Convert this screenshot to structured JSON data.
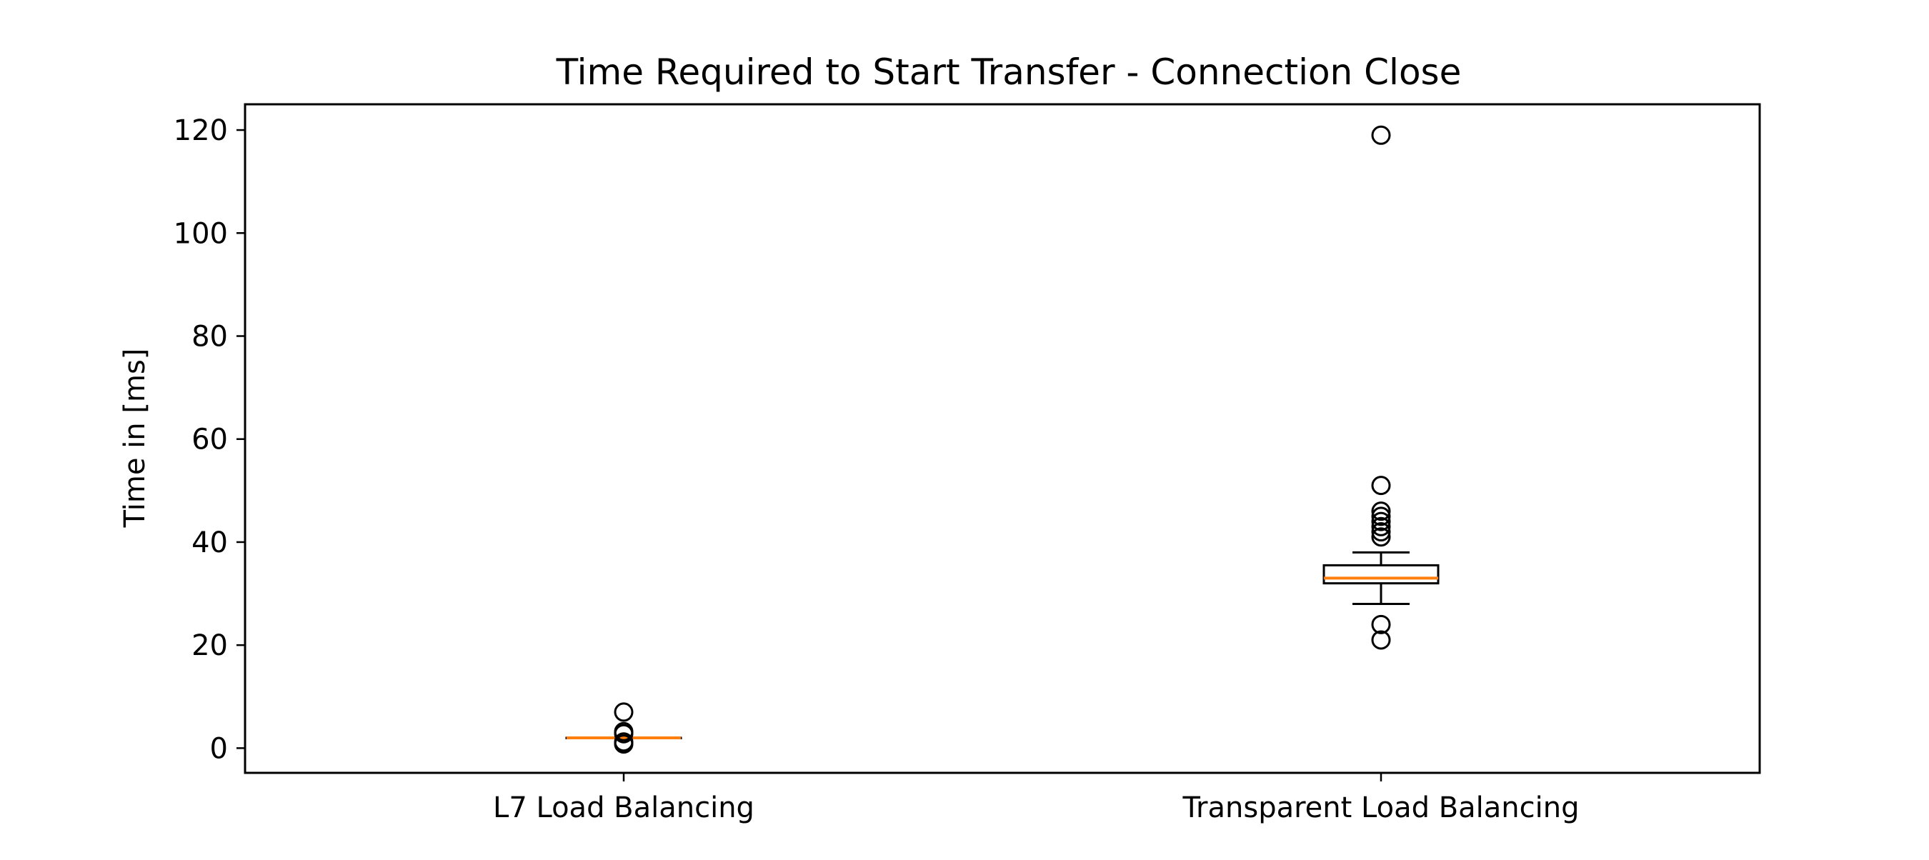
{
  "chart_data": {
    "type": "box",
    "title": "Time Required to Start Transfer - Connection Close",
    "xlabel": "",
    "ylabel": "Time in [ms]",
    "ylim": [
      -4.8,
      125
    ],
    "yticks": [
      0,
      20,
      40,
      60,
      80,
      100,
      120
    ],
    "grid": false,
    "categories": [
      "L7 Load Balancing",
      "Transparent Load Balancing"
    ],
    "boxes": [
      {
        "category": "L7 Load Balancing",
        "whisker_low": 2,
        "q1": 2,
        "median": 2,
        "q3": 2,
        "whisker_high": 2,
        "outliers": [
          7,
          3.2,
          2.8,
          1.2,
          0.8
        ]
      },
      {
        "category": "Transparent Load Balancing",
        "whisker_low": 28,
        "q1": 32,
        "median": 33,
        "q3": 35.5,
        "whisker_high": 38,
        "outliers": [
          119,
          51,
          46,
          45,
          44,
          43,
          42,
          41,
          24,
          21
        ]
      }
    ],
    "colors": {
      "box": "#000000",
      "median": "#ff7f0e",
      "outlier": "#000000"
    }
  }
}
